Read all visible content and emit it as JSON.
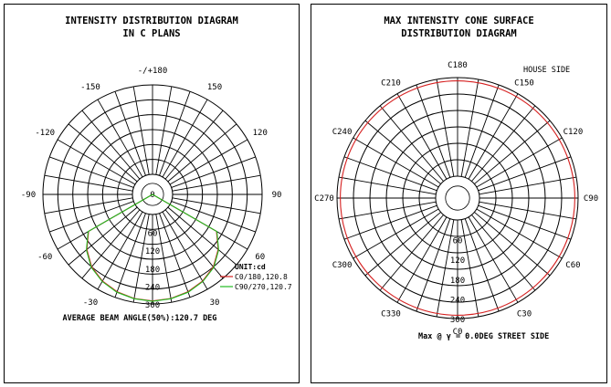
{
  "chart_data": [
    {
      "type": "polar",
      "title": [
        "INTENSITY DISTRIBUTION DIAGRAM",
        "IN C PLANS"
      ],
      "angle_labels": [
        {
          "deg": 0,
          "text": "0"
        },
        {
          "deg": 30,
          "text": "30"
        },
        {
          "deg": 60,
          "text": "60"
        },
        {
          "deg": 90,
          "text": "90"
        },
        {
          "deg": 120,
          "text": "120"
        },
        {
          "deg": 150,
          "text": "150"
        },
        {
          "deg": 180,
          "text": "-/+180"
        },
        {
          "deg": -150,
          "text": "-150"
        },
        {
          "deg": -120,
          "text": "-120"
        },
        {
          "deg": -90,
          "text": "-90"
        },
        {
          "deg": -60,
          "text": "-60"
        },
        {
          "deg": -30,
          "text": "-30"
        }
      ],
      "radial_ticks": [
        "60",
        "120",
        "180",
        "240",
        "300"
      ],
      "rmax": 300,
      "unit_label": "UNIT:cd",
      "series": [
        {
          "name": "C0/180,120.8",
          "color": "#d62020",
          "beam_angle": 120.8,
          "values_deg": [
            -60,
            -50,
            -40,
            -30,
            -20,
            -10,
            0,
            10,
            20,
            30,
            40,
            50,
            60
          ],
          "values_cd": [
            180,
            220,
            250,
            268,
            280,
            287,
            290,
            287,
            280,
            268,
            250,
            220,
            180
          ]
        },
        {
          "name": "C90/270,120.7",
          "color": "#22bb22",
          "beam_angle": 120.7,
          "values_deg": [
            -60,
            -50,
            -40,
            -30,
            -20,
            -10,
            0,
            10,
            20,
            30,
            40,
            50,
            60
          ],
          "values_cd": [
            182,
            222,
            252,
            270,
            282,
            288,
            291,
            288,
            282,
            270,
            252,
            222,
            182
          ]
        }
      ],
      "footer": "AVERAGE BEAM ANGLE(50%):120.7 DEG"
    },
    {
      "type": "polar",
      "title": [
        "MAX INTENSITY CONE SURFACE",
        "DISTRIBUTION DIAGRAM"
      ],
      "angle_labels": [
        {
          "deg": 0,
          "text": "C0"
        },
        {
          "deg": 30,
          "text": "C30"
        },
        {
          "deg": 60,
          "text": "C60"
        },
        {
          "deg": 90,
          "text": "C90"
        },
        {
          "deg": 120,
          "text": "C120"
        },
        {
          "deg": 150,
          "text": "C150"
        },
        {
          "deg": 180,
          "text": "C180"
        },
        {
          "deg": 210,
          "text": "C210"
        },
        {
          "deg": 240,
          "text": "C240"
        },
        {
          "deg": 270,
          "text": "C270"
        },
        {
          "deg": 300,
          "text": "C300"
        },
        {
          "deg": 330,
          "text": "C330"
        }
      ],
      "radial_ticks": [
        "60",
        "120",
        "180",
        "240",
        "300"
      ],
      "rmax": 300,
      "series": [
        {
          "color": "#d62020",
          "constant_cd": 290
        }
      ],
      "house_side": "HOUSE SIDE",
      "footer": "Max @ γ = 0.0DEG  STREET SIDE"
    }
  ]
}
